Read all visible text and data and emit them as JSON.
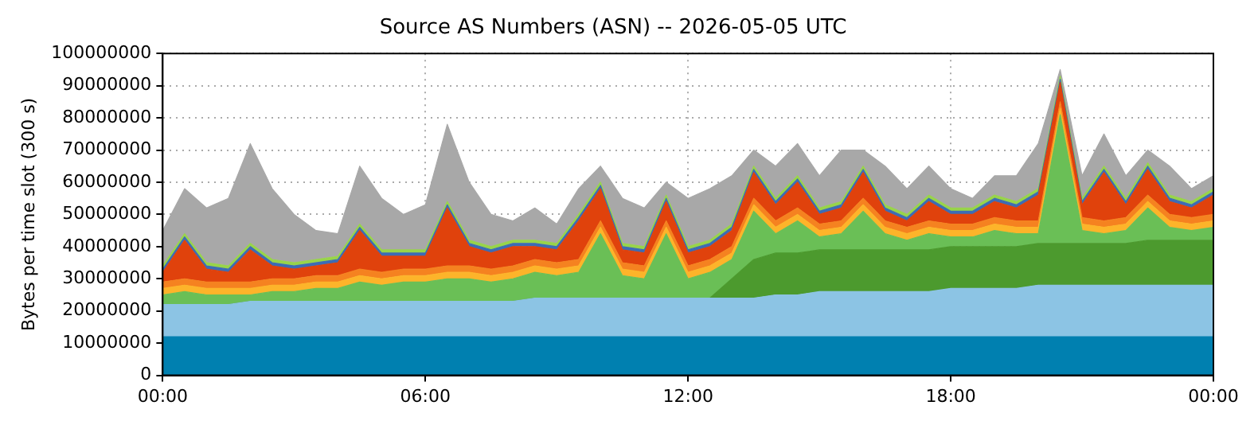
{
  "chart_data": {
    "type": "area",
    "stacked": true,
    "title": "Source AS Numbers (ASN) -- 2026-05-05 UTC",
    "ylabel": "Bytes per time slot (300 s)",
    "x": [
      0,
      0.5,
      1,
      1.5,
      2,
      2.5,
      3,
      3.5,
      4,
      4.5,
      5,
      5.5,
      6,
      6.5,
      7,
      7.5,
      8,
      8.5,
      9,
      9.5,
      10,
      10.5,
      11,
      11.5,
      12,
      12.5,
      13,
      13.5,
      14,
      14.5,
      15,
      15.5,
      16,
      16.5,
      17,
      17.5,
      18,
      18.5,
      19,
      19.5,
      20,
      20.5,
      21,
      21.5,
      22,
      22.5,
      23,
      23.5,
      24
    ],
    "xlim": [
      0,
      24
    ],
    "xticks": [
      {
        "value": 0,
        "label": "00:00"
      },
      {
        "value": 6,
        "label": "06:00"
      },
      {
        "value": 12,
        "label": "12:00"
      },
      {
        "value": 18,
        "label": "18:00"
      },
      {
        "value": 24,
        "label": "00:00"
      }
    ],
    "ylim": [
      0,
      100000000
    ],
    "yticks": [
      0,
      10000000,
      20000000,
      30000000,
      40000000,
      50000000,
      60000000,
      70000000,
      80000000,
      90000000,
      100000000
    ],
    "grid": true,
    "legend": false,
    "series": [
      {
        "color": "#0080b0",
        "values": [
          12000000,
          12000000,
          12000000,
          12000000,
          12000000,
          12000000,
          12000000,
          12000000,
          12000000,
          12000000,
          12000000,
          12000000,
          12000000,
          12000000,
          12000000,
          12000000,
          12000000,
          12000000,
          12000000,
          12000000,
          12000000,
          12000000,
          12000000,
          12000000,
          12000000,
          12000000,
          12000000,
          12000000,
          12000000,
          12000000,
          12000000,
          12000000,
          12000000,
          12000000,
          12000000,
          12000000,
          12000000,
          12000000,
          12000000,
          12000000,
          12000000,
          12000000,
          12000000,
          12000000,
          12000000,
          12000000,
          12000000,
          12000000,
          12000000
        ]
      },
      {
        "color": "#8cc4e4",
        "values": [
          10000000,
          10000000,
          10000000,
          10000000,
          11000000,
          11000000,
          11000000,
          11000000,
          11000000,
          11000000,
          11000000,
          11000000,
          11000000,
          11000000,
          11000000,
          11000000,
          11000000,
          12000000,
          12000000,
          12000000,
          12000000,
          12000000,
          12000000,
          12000000,
          12000000,
          12000000,
          12000000,
          12000000,
          13000000,
          13000000,
          14000000,
          14000000,
          14000000,
          14000000,
          14000000,
          14000000,
          15000000,
          15000000,
          15000000,
          15000000,
          16000000,
          16000000,
          16000000,
          16000000,
          16000000,
          16000000,
          16000000,
          16000000,
          16000000
        ]
      },
      {
        "color": "#4c9a2e",
        "values": [
          0,
          0,
          0,
          0,
          0,
          0,
          0,
          0,
          0,
          0,
          0,
          0,
          0,
          0,
          0,
          0,
          0,
          0,
          0,
          0,
          0,
          0,
          0,
          0,
          0,
          0,
          6000000,
          12000000,
          13000000,
          13000000,
          13000000,
          13000000,
          13000000,
          13000000,
          13000000,
          13000000,
          13000000,
          13000000,
          13000000,
          13000000,
          13000000,
          13000000,
          13000000,
          13000000,
          13000000,
          14000000,
          14000000,
          14000000,
          14000000
        ]
      },
      {
        "color": "#6abf56",
        "values": [
          3000000,
          4000000,
          3000000,
          3000000,
          2000000,
          3000000,
          3000000,
          4000000,
          4000000,
          6000000,
          5000000,
          6000000,
          6000000,
          7000000,
          7000000,
          6000000,
          7000000,
          8000000,
          7000000,
          8000000,
          20000000,
          7000000,
          6000000,
          20000000,
          6000000,
          8000000,
          6000000,
          15000000,
          6000000,
          10000000,
          4000000,
          5000000,
          12000000,
          5000000,
          3000000,
          5000000,
          3000000,
          3000000,
          5000000,
          4000000,
          3000000,
          40000000,
          4000000,
          3000000,
          4000000,
          10000000,
          4000000,
          3000000,
          4000000
        ]
      },
      {
        "color": "#fdb42a",
        "values": [
          2000000,
          2000000,
          2000000,
          2000000,
          2000000,
          2000000,
          2000000,
          2000000,
          2000000,
          2000000,
          2000000,
          2000000,
          2000000,
          2000000,
          2000000,
          2000000,
          2000000,
          2000000,
          2000000,
          2000000,
          2000000,
          2000000,
          2000000,
          2000000,
          2000000,
          2000000,
          2000000,
          2000000,
          2000000,
          2000000,
          2000000,
          2000000,
          2000000,
          2000000,
          2000000,
          2000000,
          2000000,
          2000000,
          2000000,
          2000000,
          2000000,
          2000000,
          2000000,
          2000000,
          2000000,
          2000000,
          2000000,
          2000000,
          2000000
        ]
      },
      {
        "color": "#f58220",
        "values": [
          2000000,
          2000000,
          2000000,
          2000000,
          2000000,
          2000000,
          2000000,
          2000000,
          2000000,
          2000000,
          2000000,
          2000000,
          2000000,
          2000000,
          2000000,
          2000000,
          2000000,
          2000000,
          2000000,
          2000000,
          2000000,
          2000000,
          2000000,
          2000000,
          2000000,
          2000000,
          2000000,
          2000000,
          2000000,
          2000000,
          2000000,
          2000000,
          2000000,
          2000000,
          2000000,
          2000000,
          2000000,
          2000000,
          2000000,
          2000000,
          2000000,
          2000000,
          2000000,
          2000000,
          2000000,
          2000000,
          2000000,
          2000000,
          2000000
        ]
      },
      {
        "color": "#e0420c",
        "values": [
          3000000,
          12000000,
          4000000,
          3000000,
          10000000,
          4000000,
          3000000,
          3000000,
          4000000,
          12000000,
          5000000,
          4000000,
          4000000,
          18000000,
          6000000,
          5000000,
          6000000,
          4000000,
          4000000,
          12000000,
          10000000,
          4000000,
          4000000,
          6000000,
          4000000,
          4000000,
          5000000,
          8000000,
          5000000,
          8000000,
          3000000,
          4000000,
          8000000,
          3000000,
          2000000,
          6000000,
          3000000,
          3000000,
          5000000,
          4000000,
          8000000,
          6000000,
          4000000,
          15000000,
          4000000,
          8000000,
          4000000,
          3000000,
          6000000
        ]
      },
      {
        "color": "#3d6cb4",
        "values": [
          1000000,
          1000000,
          1000000,
          1000000,
          1000000,
          1000000,
          1000000,
          1000000,
          1000000,
          1000000,
          1000000,
          1000000,
          1000000,
          1000000,
          1000000,
          1000000,
          1000000,
          1000000,
          1000000,
          1000000,
          1000000,
          1000000,
          1000000,
          1000000,
          1000000,
          1000000,
          1000000,
          1000000,
          1000000,
          1000000,
          1000000,
          1000000,
          1000000,
          1000000,
          1000000,
          1000000,
          1000000,
          1000000,
          1000000,
          1000000,
          1000000,
          1000000,
          1000000,
          1000000,
          1000000,
          1000000,
          1000000,
          1000000,
          1000000
        ]
      },
      {
        "color": "#98d44a",
        "values": [
          1000000,
          1000000,
          1000000,
          1000000,
          1000000,
          1000000,
          1000000,
          1000000,
          1000000,
          1000000,
          1000000,
          1000000,
          1000000,
          1000000,
          1000000,
          1000000,
          1000000,
          1000000,
          1000000,
          1000000,
          1000000,
          1000000,
          1000000,
          1000000,
          1000000,
          1000000,
          1000000,
          1000000,
          1000000,
          1000000,
          1000000,
          1000000,
          1000000,
          1000000,
          1000000,
          1000000,
          1000000,
          1000000,
          1000000,
          1000000,
          1000000,
          1000000,
          1000000,
          1000000,
          1000000,
          1000000,
          1000000,
          1000000,
          1000000
        ]
      },
      {
        "color": "#a8a8a8",
        "values": [
          11000000,
          14000000,
          17000000,
          21000000,
          31000000,
          22000000,
          15000000,
          9000000,
          7000000,
          18000000,
          16000000,
          11000000,
          14000000,
          24000000,
          18000000,
          10000000,
          6000000,
          10000000,
          6000000,
          8000000,
          5000000,
          14000000,
          12000000,
          4000000,
          15000000,
          16000000,
          15000000,
          5000000,
          10000000,
          10000000,
          10000000,
          16000000,
          5000000,
          12000000,
          8000000,
          9000000,
          6000000,
          3000000,
          6000000,
          8000000,
          14000000,
          2000000,
          7000000,
          10000000,
          7000000,
          4000000,
          9000000,
          4000000,
          4000000
        ]
      }
    ]
  }
}
